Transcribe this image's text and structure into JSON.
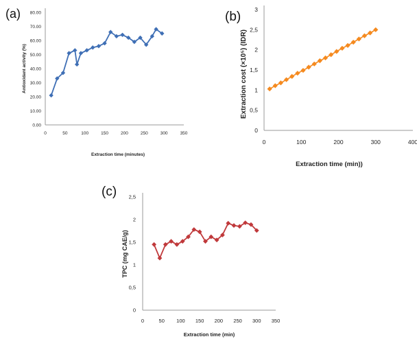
{
  "chart_data": [
    {
      "panel_label": "(a)",
      "type": "line",
      "color": "#3f6fb5",
      "marker": "diamond",
      "xlabel": "Extraction time (minutes)",
      "ylabel": "Antioxidant activity (%)",
      "xlim": [
        0,
        350
      ],
      "ylim": [
        0,
        80
      ],
      "xticks": [
        "0",
        "50",
        "100",
        "150",
        "200",
        "250",
        "300",
        "350"
      ],
      "yticks": [
        "0.00",
        "10.00",
        "20.00",
        "30.00",
        "40.00",
        "50.00",
        "60.00",
        "70.00",
        "80.00"
      ],
      "x": [
        15,
        30,
        45,
        60,
        75,
        80,
        90,
        105,
        120,
        135,
        150,
        165,
        180,
        195,
        210,
        225,
        240,
        255,
        270,
        280,
        295
      ],
      "y": [
        21,
        33,
        37,
        51,
        53,
        43,
        51,
        53,
        55,
        56,
        58,
        66,
        63,
        64,
        62,
        59,
        62,
        57,
        63,
        68,
        65
      ],
      "grid": false,
      "legend": "none"
    },
    {
      "panel_label": "(b)",
      "type": "line",
      "color": "#f58a1f",
      "marker": "diamond",
      "xlabel": "Extraction time (min))",
      "ylabel": "Extraction cost (×10⁵) (IDR)",
      "xlim": [
        0,
        400
      ],
      "ylim": [
        0,
        3
      ],
      "xticks": [
        "0",
        "100",
        "200",
        "300",
        "400"
      ],
      "yticks": [
        "0",
        "0,5",
        "1",
        "1,5",
        "2",
        "2,5",
        "3"
      ],
      "x": [
        15,
        30,
        45,
        60,
        75,
        90,
        105,
        120,
        135,
        150,
        165,
        180,
        195,
        210,
        225,
        240,
        255,
        270,
        285,
        300
      ],
      "y": [
        1.03,
        1.11,
        1.18,
        1.26,
        1.34,
        1.42,
        1.49,
        1.57,
        1.65,
        1.73,
        1.8,
        1.88,
        1.96,
        2.04,
        2.11,
        2.19,
        2.27,
        2.35,
        2.42,
        2.5
      ],
      "grid": false,
      "legend": "none"
    },
    {
      "panel_label": "(c)",
      "type": "line",
      "color": "#c0393b",
      "marker": "diamond",
      "xlabel": "Extraction time (min)",
      "ylabel": "TPC (mg CAE/g)",
      "xlim": [
        0,
        350
      ],
      "ylim": [
        0,
        2.5
      ],
      "xticks": [
        "0",
        "50",
        "100",
        "150",
        "200",
        "250",
        "300",
        "350"
      ],
      "yticks": [
        "0",
        "0,5",
        "1",
        "1,5",
        "2",
        "2,5"
      ],
      "x": [
        30,
        45,
        60,
        75,
        90,
        105,
        120,
        135,
        150,
        165,
        180,
        195,
        210,
        225,
        240,
        255,
        270,
        285,
        300
      ],
      "y": [
        1.45,
        1.15,
        1.45,
        1.52,
        1.45,
        1.52,
        1.62,
        1.78,
        1.73,
        1.52,
        1.62,
        1.55,
        1.66,
        1.92,
        1.87,
        1.85,
        1.93,
        1.89,
        1.76
      ],
      "grid": false,
      "legend": "none"
    }
  ]
}
